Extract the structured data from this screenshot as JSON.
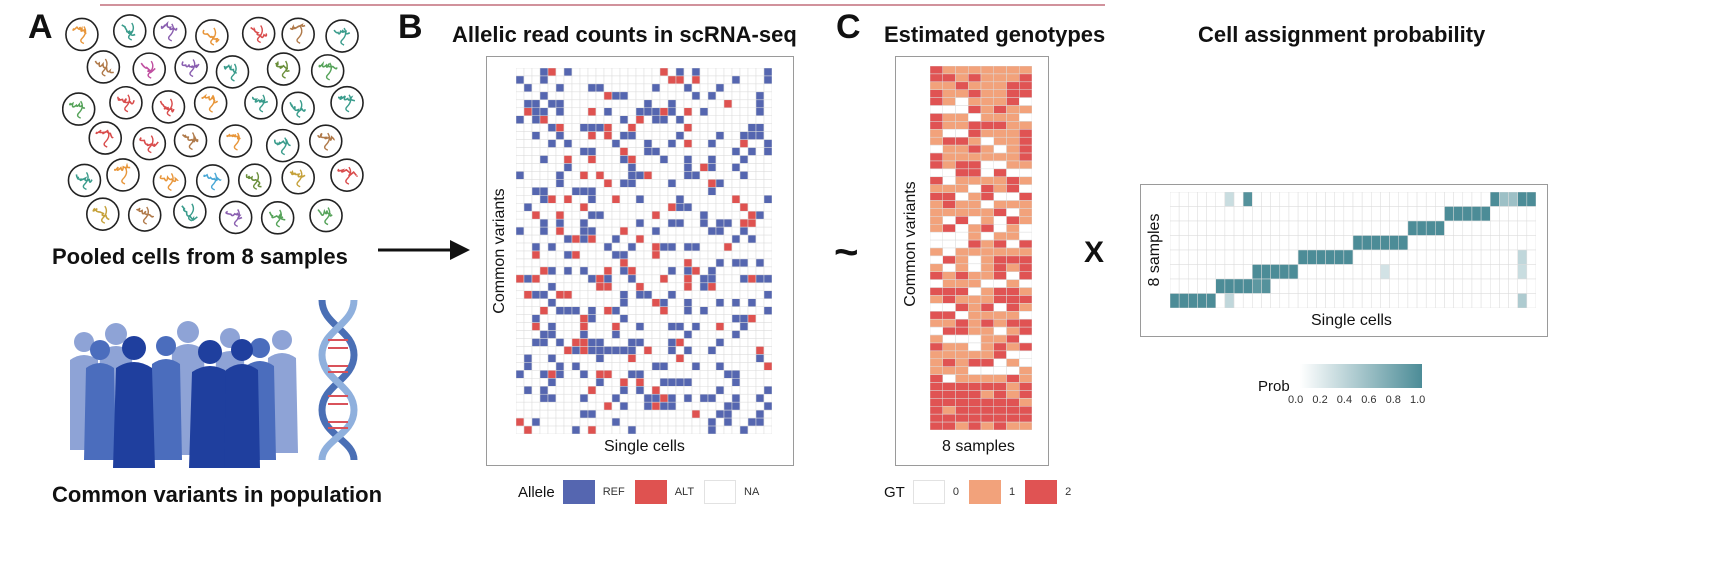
{
  "panels": {
    "a": {
      "letter": "A",
      "caption_cells": "Pooled cells from 8 samples",
      "caption_population": "Common variants in population"
    },
    "b": {
      "letter": "B",
      "title": "Allelic read counts in scRNA-seq",
      "y_label": "Common variants",
      "x_label": "Single cells",
      "legend": {
        "title": "Allele",
        "items": [
          {
            "label": "REF",
            "color": "#5566b0"
          },
          {
            "label": "ALT",
            "color": "#df5250"
          },
          {
            "label": "NA",
            "color": "#ffffff"
          }
        ]
      }
    },
    "c": {
      "letter": "C",
      "tilde": "~",
      "times": "X",
      "genotype_title": "Estimated genotypes",
      "genotype_y_label": "Common variants",
      "genotype_x_label": "8 samples",
      "genotype_legend": {
        "title": "GT",
        "items": [
          {
            "label": "0",
            "color": "#ffffff"
          },
          {
            "label": "1",
            "color": "#f2a27b"
          },
          {
            "label": "2",
            "color": "#e05353"
          }
        ]
      },
      "assign_title": "Cell assignment probability",
      "assign_y_label": "8 samples",
      "assign_x_label": "Single cells",
      "prob_legend": {
        "title": "Prob",
        "ticks": [
          "0.0",
          "0.2",
          "0.4",
          "0.6",
          "0.8",
          "1.0"
        ],
        "color_low": "#ffffff",
        "color_high": "#4c8c97"
      }
    }
  },
  "colors": {
    "ref": "#5566b0",
    "alt": "#df5250",
    "gt1": "#f2a27b",
    "gt2": "#e05353",
    "teal": "#4c8c97",
    "grid": "#dcdcdc"
  }
}
